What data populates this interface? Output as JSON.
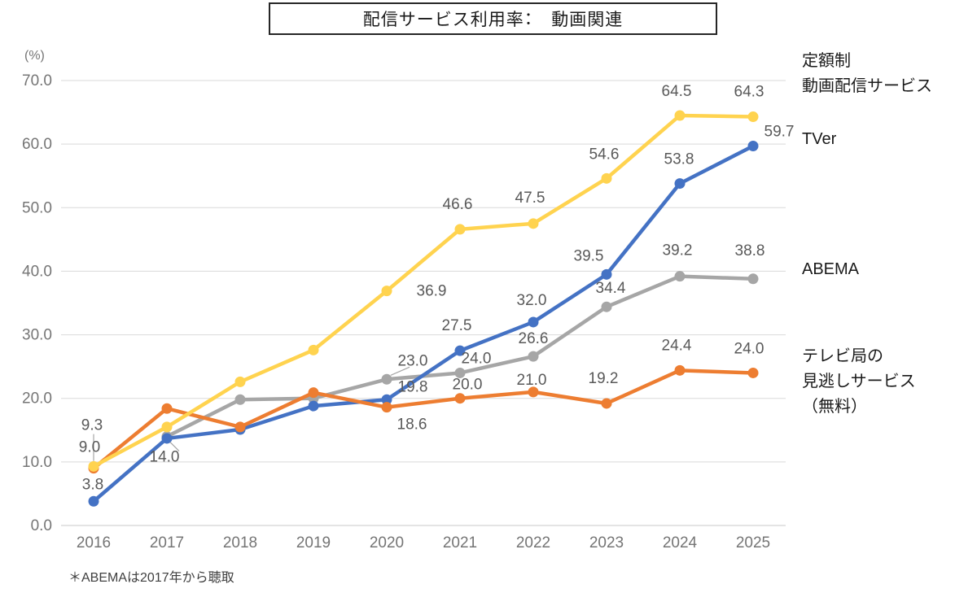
{
  "chart_data": {
    "type": "line",
    "title": "配信サービス利用率：　動画関連",
    "unit": "(%)",
    "footnote": "＊ABEMAは2017年から聴取",
    "categories": [
      "2016",
      "2017",
      "2018",
      "2019",
      "2020",
      "2021",
      "2022",
      "2023",
      "2024",
      "2025"
    ],
    "ylim": [
      0,
      70
    ],
    "ytick_labels": [
      "0.0",
      "10.0",
      "20.0",
      "30.0",
      "40.0",
      "50.0",
      "60.0",
      "70.0"
    ],
    "grid": true,
    "legend_position": "right",
    "draw_order": [
      2,
      1,
      3,
      0
    ],
    "series": [
      {
        "key": "svod",
        "name": "定額制動画配信サービス",
        "legend_label": "定額制\n動画配信サービス",
        "color": "#FFD34F",
        "values": [
          9.3,
          15.5,
          22.6,
          27.6,
          36.9,
          46.6,
          47.5,
          54.6,
          64.5,
          64.3
        ],
        "point_labels": [
          "9.3",
          null,
          null,
          null,
          "36.9",
          "46.6",
          "47.5",
          "54.6",
          "64.5",
          "64.3"
        ],
        "label_offsets": [
          [
            -2,
            -45
          ],
          null,
          null,
          null,
          [
            55,
            6
          ],
          [
            -3,
            -25
          ],
          [
            -4,
            -26
          ],
          [
            -3,
            -24
          ],
          [
            -4,
            -24
          ],
          [
            -5,
            -25
          ]
        ],
        "leaders": [
          null,
          null,
          null,
          null,
          null,
          null,
          null,
          null,
          null,
          null
        ]
      },
      {
        "key": "tver",
        "name": "TVer",
        "legend_label": "TVer",
        "color": "#4472C4",
        "values": [
          3.8,
          13.7,
          15.1,
          18.8,
          19.8,
          27.5,
          32.0,
          39.5,
          53.8,
          59.7
        ],
        "point_labels": [
          "3.8",
          null,
          null,
          null,
          "19.8",
          "27.5",
          "32.0",
          "39.5",
          "53.8",
          "59.7"
        ],
        "label_offsets": [
          [
            -1,
            -15
          ],
          null,
          null,
          null,
          [
            32,
            -10
          ],
          [
            -4,
            -25
          ],
          [
            -2,
            -21
          ],
          [
            -22,
            -17
          ],
          [
            -1,
            -24
          ],
          [
            32,
            -12
          ]
        ],
        "leaders": [
          null,
          null,
          null,
          null,
          null,
          null,
          null,
          null,
          null,
          null
        ]
      },
      {
        "key": "abema",
        "name": "ABEMA",
        "legend_label": "ABEMA",
        "color": "#A6A6A6",
        "values": [
          null,
          14.0,
          19.8,
          20.0,
          23.0,
          24.0,
          26.6,
          34.4,
          39.2,
          38.8
        ],
        "point_labels": [
          null,
          "14.0",
          null,
          null,
          "23.0",
          "24.0",
          "26.6",
          "34.4",
          "39.2",
          "38.8"
        ],
        "label_offsets": [
          null,
          [
            -3,
            31
          ],
          null,
          null,
          [
            32,
            -17
          ],
          [
            20,
            -12
          ],
          [
            0,
            -16
          ],
          [
            5,
            -17
          ],
          [
            -3,
            -26
          ],
          [
            -4,
            -29
          ]
        ],
        "leaders": [
          null,
          [
            4,
            7,
            15,
            18
          ],
          null,
          null,
          [
            5,
            -5,
            28,
            -15
          ],
          null,
          null,
          null,
          null,
          null
        ]
      },
      {
        "key": "catchup",
        "name": "テレビ局の見逃しサービス（無料）",
        "legend_label": "テレビ局の\n見逃しサービス\n（無料）",
        "color": "#ED7D31",
        "values": [
          9.0,
          18.4,
          15.5,
          20.9,
          18.6,
          20.0,
          21.0,
          19.2,
          24.4,
          24.0
        ],
        "point_labels": [
          "9.0",
          null,
          null,
          null,
          "18.6",
          "20.0",
          "21.0",
          "19.2",
          "24.4",
          "24.0"
        ],
        "label_offsets": [
          [
            -5,
            -20
          ],
          null,
          null,
          null,
          [
            31,
            27
          ],
          [
            9,
            -11
          ],
          [
            -2,
            -9
          ],
          [
            -4,
            -25
          ],
          [
            -4,
            -25
          ],
          [
            -5,
            -24
          ]
        ],
        "leaders": [
          [
            0,
            -42,
            0,
            -9
          ],
          null,
          null,
          null,
          null,
          null,
          null,
          null,
          null,
          null
        ]
      }
    ],
    "style": {
      "grid_color": "#d9d9d9",
      "axis_color": "#c8c8c8",
      "tick_color": "#757575",
      "data_label_color": "#595959",
      "leader_color": "#a6a6a6"
    }
  }
}
